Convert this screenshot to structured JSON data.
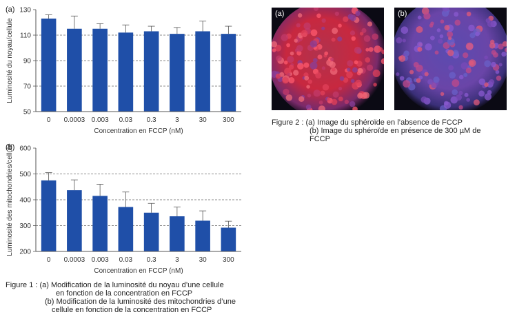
{
  "chart_data": [
    {
      "type": "bar",
      "panel_label": "(a)",
      "categories": [
        "0",
        "0.0003",
        "0.003",
        "0.03",
        "0.3",
        "3",
        "30",
        "300"
      ],
      "values": [
        123,
        115,
        115,
        112,
        113,
        111,
        113,
        111
      ],
      "errors": [
        3,
        10,
        4,
        6,
        4,
        5,
        8,
        6
      ],
      "xlabel": "Concentration en FCCP (nM)",
      "ylabel": "Luminosité du noyau/cellule",
      "ylim": [
        50,
        130
      ],
      "yticks": [
        "50",
        "70",
        "90",
        "110",
        "130"
      ],
      "grid": "dashed-horizontal",
      "bar_color": "#1f4fa8"
    },
    {
      "type": "bar",
      "panel_label": "(b)",
      "categories": [
        "0",
        "0.0003",
        "0.003",
        "0.03",
        "0.3",
        "3",
        "30",
        "300"
      ],
      "values": [
        475,
        437,
        415,
        372,
        350,
        336,
        319,
        292
      ],
      "errors": [
        30,
        40,
        45,
        58,
        36,
        36,
        38,
        25
      ],
      "xlabel": "Concentration en FCCP (nM)",
      "ylabel": "Luminosité des mitochondries/cellule",
      "ylim": [
        200,
        600
      ],
      "yticks": [
        "200",
        "300",
        "400",
        "500",
        "600"
      ],
      "grid": "dashed-horizontal",
      "bar_color": "#1f4fa8"
    }
  ],
  "figure1": {
    "line1": "Figure 1 : (a) Modification de la luminosité du noyau d’une cellule",
    "line2": "en fonction de la concentration en FCCP",
    "line3": "(b) Modification de la luminosité des mitochondries d’une",
    "line4": "cellule en fonction de la concentration en FCCP"
  },
  "figure2": {
    "label_a": "(a)",
    "label_b": "(b)",
    "line1": "Figure 2 : (a) Image du sphéroïde en l’absence de FCCP",
    "line2": "(b) Image du sphéroïde en présence de 300 µM de",
    "line3": "FCCP"
  },
  "colors": {
    "bar": "#1f4fa8",
    "axis": "#555555",
    "grid": "#666666"
  }
}
